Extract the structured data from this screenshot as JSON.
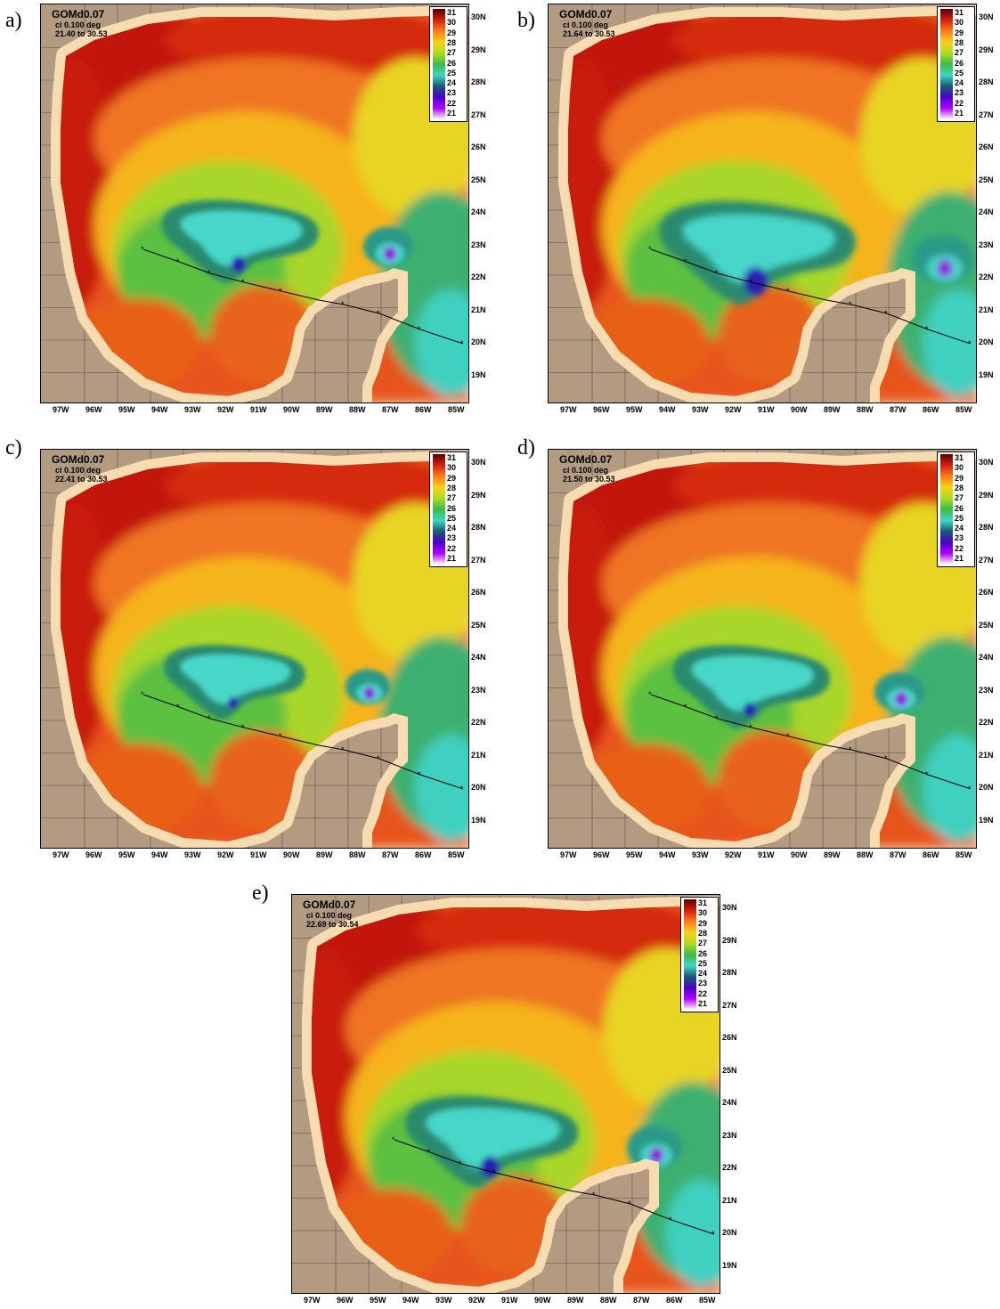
{
  "panels": [
    {
      "letter": "a)",
      "title": "GOMd0.07",
      "ci": "ci  0.100 deg",
      "range": "21.40 to 30.53"
    },
    {
      "letter": "b)",
      "title": "GOMd0.07",
      "ci": "ci  0.100 deg",
      "range": "21.64 to 30.53"
    },
    {
      "letter": "c)",
      "title": "GOMd0.07",
      "ci": "ci  0.100 deg",
      "range": "22.41 to 30.53"
    },
    {
      "letter": "d)",
      "title": "GOMd0.07",
      "ci": "ci  0.100 deg",
      "range": "21.50 to 30.53"
    },
    {
      "letter": "e)",
      "title": "GOMd0.07",
      "ci": "ci  0.100 deg",
      "range": "22.69 to 30.54"
    }
  ],
  "colorbar": {
    "labels": [
      "31",
      "30",
      "29",
      "28",
      "27",
      "26",
      "25",
      "24",
      "23",
      "22",
      "21"
    ],
    "colors": [
      "#5a0000",
      "#d32010",
      "#ff7a1e",
      "#f5d21a",
      "#aedb22",
      "#3dbb48",
      "#3fd6c4",
      "#1a5a70",
      "#4a00cc",
      "#b000ff",
      "#ffffff"
    ]
  },
  "longitudes": [
    "97W",
    "96W",
    "95W",
    "94W",
    "93W",
    "92W",
    "91W",
    "90W",
    "89W",
    "88W",
    "87W",
    "86W",
    "85W"
  ],
  "latitudes": [
    "30N",
    "29N",
    "28N",
    "27N",
    "26N",
    "25N",
    "24N",
    "23N",
    "22N",
    "21N",
    "20N",
    "19N"
  ],
  "colors": {
    "land": "#b39b82",
    "shelf": "#f7dcb2",
    "track": "#000000"
  }
}
